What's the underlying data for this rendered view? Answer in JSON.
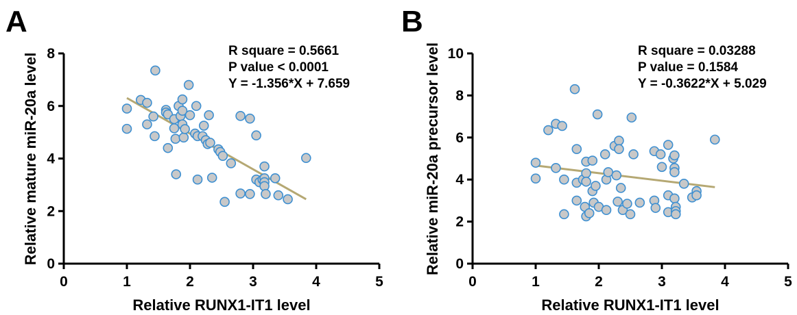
{
  "chart_data": [
    {
      "type": "scatter",
      "panel_label": "A",
      "xlabel": "Relative RUNX1-IT1 level",
      "ylabel": "Relative mature miR-20a level",
      "xlim": [
        0,
        5
      ],
      "ylim": [
        0,
        8
      ],
      "xticks": [
        "0",
        "1",
        "2",
        "3",
        "4",
        "5"
      ],
      "yticks": [
        "0",
        "2",
        "4",
        "6",
        "8"
      ],
      "grid": false,
      "annotations": [
        "R square = 0.5661",
        "P value < 0.0001",
        "Y = -1.356*X + 7.659"
      ],
      "fit_line": {
        "slope": -1.356,
        "intercept": 7.659,
        "x_range": [
          1.0,
          3.84
        ]
      },
      "points": [
        [
          1.0,
          5.9
        ],
        [
          1.0,
          5.13
        ],
        [
          1.22,
          6.23
        ],
        [
          1.32,
          6.12
        ],
        [
          1.32,
          5.3
        ],
        [
          1.42,
          5.6
        ],
        [
          1.44,
          4.85
        ],
        [
          1.45,
          7.35
        ],
        [
          1.62,
          5.85
        ],
        [
          1.62,
          5.75
        ],
        [
          1.65,
          5.68
        ],
        [
          1.65,
          4.4
        ],
        [
          1.75,
          5.5
        ],
        [
          1.75,
          5.15
        ],
        [
          1.77,
          4.75
        ],
        [
          1.78,
          3.4
        ],
        [
          1.82,
          6.0
        ],
        [
          1.85,
          5.62
        ],
        [
          1.88,
          6.25
        ],
        [
          1.88,
          5.82
        ],
        [
          1.88,
          5.3
        ],
        [
          1.9,
          4.8
        ],
        [
          1.92,
          5.12
        ],
        [
          1.98,
          6.8
        ],
        [
          2.0,
          5.65
        ],
        [
          2.08,
          4.95
        ],
        [
          2.1,
          6.0
        ],
        [
          2.12,
          4.85
        ],
        [
          2.12,
          3.2
        ],
        [
          2.2,
          4.85
        ],
        [
          2.22,
          5.25
        ],
        [
          2.25,
          4.7
        ],
        [
          2.28,
          4.55
        ],
        [
          2.3,
          5.65
        ],
        [
          2.32,
          4.6
        ],
        [
          2.35,
          3.27
        ],
        [
          2.45,
          4.35
        ],
        [
          2.48,
          4.25
        ],
        [
          2.52,
          4.1
        ],
        [
          2.55,
          2.35
        ],
        [
          2.65,
          3.82
        ],
        [
          2.8,
          5.62
        ],
        [
          2.8,
          2.67
        ],
        [
          2.95,
          5.52
        ],
        [
          2.95,
          2.65
        ],
        [
          3.05,
          4.88
        ],
        [
          3.05,
          3.2
        ],
        [
          3.1,
          3.1
        ],
        [
          3.15,
          3.2
        ],
        [
          3.18,
          3.7
        ],
        [
          3.18,
          3.25
        ],
        [
          3.18,
          3.1
        ],
        [
          3.18,
          2.95
        ],
        [
          3.2,
          2.65
        ],
        [
          3.35,
          3.25
        ],
        [
          3.4,
          2.6
        ],
        [
          3.55,
          2.45
        ],
        [
          3.84,
          4.02
        ]
      ]
    },
    {
      "type": "scatter",
      "panel_label": "B",
      "xlabel": "Relative RUNX1-IT1 level",
      "ylabel": "Relative miR-20a precursor level",
      "xlim": [
        0,
        5
      ],
      "ylim": [
        0,
        10
      ],
      "xticks": [
        "0",
        "1",
        "2",
        "3",
        "4",
        "5"
      ],
      "yticks": [
        "0",
        "2",
        "4",
        "6",
        "8",
        "10"
      ],
      "grid": false,
      "annotations": [
        "R square = 0.03288",
        "P value = 0.1584",
        "Y = -0.3622*X + 5.029"
      ],
      "fit_line": {
        "slope": -0.3622,
        "intercept": 5.029,
        "x_range": [
          1.0,
          3.84
        ]
      },
      "points": [
        [
          1.0,
          4.8
        ],
        [
          1.0,
          4.05
        ],
        [
          1.2,
          6.35
        ],
        [
          1.32,
          6.65
        ],
        [
          1.32,
          4.55
        ],
        [
          1.42,
          6.55
        ],
        [
          1.45,
          4.0
        ],
        [
          1.45,
          2.35
        ],
        [
          1.62,
          8.3
        ],
        [
          1.65,
          5.45
        ],
        [
          1.65,
          3.85
        ],
        [
          1.65,
          3.0
        ],
        [
          1.75,
          4.0
        ],
        [
          1.78,
          2.7
        ],
        [
          1.8,
          4.85
        ],
        [
          1.8,
          4.3
        ],
        [
          1.8,
          3.9
        ],
        [
          1.8,
          2.25
        ],
        [
          1.85,
          2.4
        ],
        [
          1.9,
          4.9
        ],
        [
          1.9,
          3.45
        ],
        [
          1.92,
          2.9
        ],
        [
          1.95,
          3.7
        ],
        [
          1.98,
          7.1
        ],
        [
          2.0,
          2.7
        ],
        [
          2.1,
          5.2
        ],
        [
          2.12,
          4.0
        ],
        [
          2.12,
          2.55
        ],
        [
          2.15,
          4.35
        ],
        [
          2.25,
          5.6
        ],
        [
          2.28,
          4.2
        ],
        [
          2.3,
          2.95
        ],
        [
          2.32,
          5.85
        ],
        [
          2.32,
          5.45
        ],
        [
          2.35,
          3.6
        ],
        [
          2.38,
          2.55
        ],
        [
          2.45,
          2.85
        ],
        [
          2.5,
          2.35
        ],
        [
          2.52,
          6.95
        ],
        [
          2.55,
          5.2
        ],
        [
          2.65,
          2.9
        ],
        [
          2.88,
          5.35
        ],
        [
          2.88,
          3.0
        ],
        [
          2.9,
          2.65
        ],
        [
          2.98,
          5.2
        ],
        [
          3.0,
          4.6
        ],
        [
          3.1,
          5.65
        ],
        [
          3.1,
          3.25
        ],
        [
          3.1,
          2.45
        ],
        [
          3.18,
          5.0
        ],
        [
          3.2,
          5.15
        ],
        [
          3.2,
          4.55
        ],
        [
          3.2,
          4.35
        ],
        [
          3.2,
          3.1
        ],
        [
          3.22,
          2.7
        ],
        [
          3.22,
          2.5
        ],
        [
          3.22,
          2.35
        ],
        [
          3.35,
          3.8
        ],
        [
          3.48,
          3.15
        ],
        [
          3.55,
          3.45
        ],
        [
          3.55,
          3.25
        ],
        [
          3.84,
          5.9
        ]
      ]
    }
  ],
  "colors": {
    "marker_fill": "#c8c8c8",
    "marker_stroke": "#3d8fd1",
    "fit_line": "#b5a873",
    "axis": "#000000"
  }
}
